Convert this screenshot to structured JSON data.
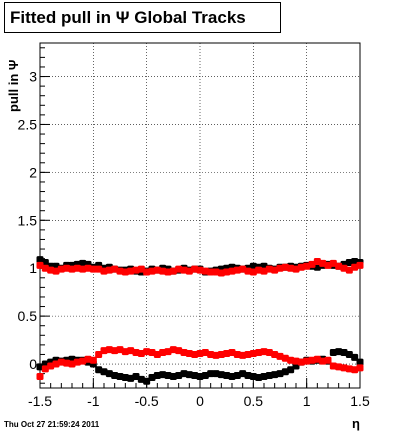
{
  "title": "Fitted pull in  Ψ   Global Tracks",
  "footer_date": "Thu Oct 27 21:59:24 2011",
  "chart_data": {
    "type": "scatter",
    "title": "Fitted pull in  Ψ   Global Tracks",
    "xlabel": "η",
    "ylabel": "pull in Ψ",
    "xlim": [
      -1.5,
      1.5
    ],
    "ylim": [
      -0.25,
      3.35
    ],
    "x_ticks": [
      "-1.5",
      "-1",
      "-0.5",
      "0",
      "0.5",
      "1",
      "1.5"
    ],
    "y_ticks": [
      "0",
      "0.5",
      "1",
      "1.5",
      "2",
      "2.5",
      "3"
    ],
    "grid": true,
    "colors": {
      "black": "#000000",
      "red": "#ff0000"
    },
    "series": [
      {
        "color": "black",
        "x": [
          -1.5,
          -1.45,
          -1.4,
          -1.35,
          -1.3,
          -1.25,
          -1.2,
          -1.15,
          -1.1,
          -1.05,
          -1.0,
          -0.95,
          -0.9,
          -0.85,
          -0.8,
          -0.75,
          -0.7,
          -0.65,
          -0.6,
          -0.55,
          -0.5,
          -0.45,
          -0.4,
          -0.35,
          -0.3,
          -0.25,
          -0.2,
          -0.15,
          -0.1,
          -0.05,
          0.0,
          0.05,
          0.1,
          0.15,
          0.2,
          0.25,
          0.3,
          0.35,
          0.4,
          0.45,
          0.5,
          0.55,
          0.6,
          0.65,
          0.7,
          0.75,
          0.8,
          0.85,
          0.9,
          0.95,
          1.0,
          1.05,
          1.1,
          1.15,
          1.2,
          1.25,
          1.3,
          1.35,
          1.4,
          1.45,
          1.5
        ],
        "y": [
          1.09,
          1.06,
          1.02,
          1.02,
          1.0,
          1.03,
          1.03,
          1.04,
          1.05,
          1.04,
          1.01,
          1.03,
          1.0,
          1.01,
          0.99,
          0.98,
          0.98,
          0.99,
          0.97,
          0.96,
          0.97,
          0.99,
          0.98,
          1.0,
          0.99,
          0.97,
          0.98,
          1.0,
          0.98,
          0.99,
          0.99,
          0.96,
          0.97,
          0.98,
          0.99,
          1.0,
          1.01,
          1.0,
          0.99,
          1.0,
          1.02,
          1.01,
          1.02,
          1.0,
          0.99,
          1.01,
          1.01,
          1.02,
          1.01,
          1.02,
          1.03,
          1.02,
          1.01,
          1.03,
          1.04,
          1.03,
          1.02,
          1.04,
          1.06,
          1.07,
          1.06
        ]
      },
      {
        "color": "red",
        "x": [
          -1.5,
          -1.45,
          -1.4,
          -1.35,
          -1.3,
          -1.25,
          -1.2,
          -1.15,
          -1.1,
          -1.05,
          -1.0,
          -0.95,
          -0.9,
          -0.85,
          -0.8,
          -0.75,
          -0.7,
          -0.65,
          -0.6,
          -0.55,
          -0.5,
          -0.45,
          -0.4,
          -0.35,
          -0.3,
          -0.25,
          -0.2,
          -0.15,
          -0.1,
          -0.05,
          0.0,
          0.05,
          0.1,
          0.15,
          0.2,
          0.25,
          0.3,
          0.35,
          0.4,
          0.45,
          0.5,
          0.55,
          0.6,
          0.65,
          0.7,
          0.75,
          0.8,
          0.85,
          0.9,
          0.95,
          1.0,
          1.05,
          1.1,
          1.15,
          1.2,
          1.25,
          1.3,
          1.35,
          1.4,
          1.45,
          1.5
        ],
        "y": [
          1.03,
          1.0,
          0.98,
          0.97,
          0.99,
          1.0,
          0.99,
          1.0,
          0.99,
          1.0,
          0.99,
          0.99,
          0.97,
          0.98,
          0.99,
          0.97,
          0.96,
          0.97,
          0.98,
          0.99,
          0.96,
          0.97,
          0.98,
          0.97,
          0.96,
          0.97,
          0.99,
          0.98,
          0.97,
          0.99,
          0.98,
          0.97,
          0.96,
          0.96,
          0.95,
          0.96,
          0.97,
          0.98,
          0.99,
          0.97,
          0.96,
          0.98,
          0.97,
          0.99,
          0.98,
          1.0,
          1.01,
          1.0,
          0.99,
          1.01,
          1.02,
          1.04,
          1.07,
          1.05,
          1.03,
          1.05,
          1.02,
          1.0,
          0.98,
          1.01,
          1.03
        ]
      },
      {
        "color": "black",
        "x": [
          -1.5,
          -1.45,
          -1.4,
          -1.35,
          -1.3,
          -1.25,
          -1.2,
          -1.15,
          -1.1,
          -1.05,
          -1.0,
          -0.95,
          -0.9,
          -0.85,
          -0.8,
          -0.75,
          -0.7,
          -0.65,
          -0.6,
          -0.55,
          -0.5,
          -0.45,
          -0.4,
          -0.35,
          -0.3,
          -0.25,
          -0.2,
          -0.15,
          -0.1,
          -0.05,
          0.0,
          0.05,
          0.1,
          0.15,
          0.2,
          0.25,
          0.3,
          0.35,
          0.4,
          0.45,
          0.5,
          0.55,
          0.6,
          0.65,
          0.7,
          0.75,
          0.8,
          0.85,
          0.9,
          0.95,
          1.0,
          1.05,
          1.1,
          1.15,
          1.2,
          1.25,
          1.3,
          1.35,
          1.4,
          1.45,
          1.5
        ],
        "y": [
          -0.03,
          0.0,
          0.02,
          0.04,
          0.03,
          0.04,
          0.05,
          0.04,
          0.04,
          0.02,
          0.0,
          -0.06,
          -0.08,
          -0.1,
          -0.12,
          -0.13,
          -0.14,
          -0.15,
          -0.13,
          -0.16,
          -0.18,
          -0.14,
          -0.12,
          -0.11,
          -0.12,
          -0.13,
          -0.12,
          -0.1,
          -0.11,
          -0.12,
          -0.13,
          -0.12,
          -0.1,
          -0.1,
          -0.11,
          -0.12,
          -0.13,
          -0.12,
          -0.1,
          -0.12,
          -0.13,
          -0.14,
          -0.13,
          -0.12,
          -0.11,
          -0.1,
          -0.08,
          -0.06,
          -0.02,
          0.02,
          0.04,
          0.03,
          0.04,
          0.05,
          0.03,
          0.12,
          0.13,
          0.12,
          0.1,
          0.07,
          0.02
        ]
      },
      {
        "color": "red",
        "x": [
          -1.5,
          -1.45,
          -1.4,
          -1.35,
          -1.3,
          -1.25,
          -1.2,
          -1.15,
          -1.1,
          -1.05,
          -1.0,
          -0.95,
          -0.9,
          -0.85,
          -0.8,
          -0.75,
          -0.7,
          -0.65,
          -0.6,
          -0.55,
          -0.5,
          -0.45,
          -0.4,
          -0.35,
          -0.3,
          -0.25,
          -0.2,
          -0.15,
          -0.1,
          -0.05,
          0.0,
          0.05,
          0.1,
          0.15,
          0.2,
          0.25,
          0.3,
          0.35,
          0.4,
          0.45,
          0.5,
          0.55,
          0.6,
          0.65,
          0.7,
          0.75,
          0.8,
          0.85,
          0.9,
          0.95,
          1.0,
          1.05,
          1.1,
          1.15,
          1.2,
          1.25,
          1.3,
          1.35,
          1.4,
          1.45,
          1.5
        ],
        "y": [
          -0.13,
          -0.05,
          -0.02,
          0.0,
          0.02,
          0.01,
          0.0,
          0.02,
          0.03,
          0.05,
          0.04,
          0.1,
          0.14,
          0.15,
          0.14,
          0.15,
          0.13,
          0.14,
          0.12,
          0.11,
          0.13,
          0.12,
          0.1,
          0.12,
          0.13,
          0.15,
          0.14,
          0.12,
          0.11,
          0.1,
          0.11,
          0.12,
          0.1,
          0.09,
          0.1,
          0.11,
          0.12,
          0.1,
          0.09,
          0.1,
          0.11,
          0.12,
          0.13,
          0.12,
          0.1,
          0.08,
          0.06,
          0.04,
          0.03,
          0.02,
          0.03,
          0.04,
          0.05,
          0.03,
          0.04,
          -0.02,
          -0.03,
          -0.04,
          -0.05,
          -0.06,
          -0.04
        ]
      }
    ]
  }
}
